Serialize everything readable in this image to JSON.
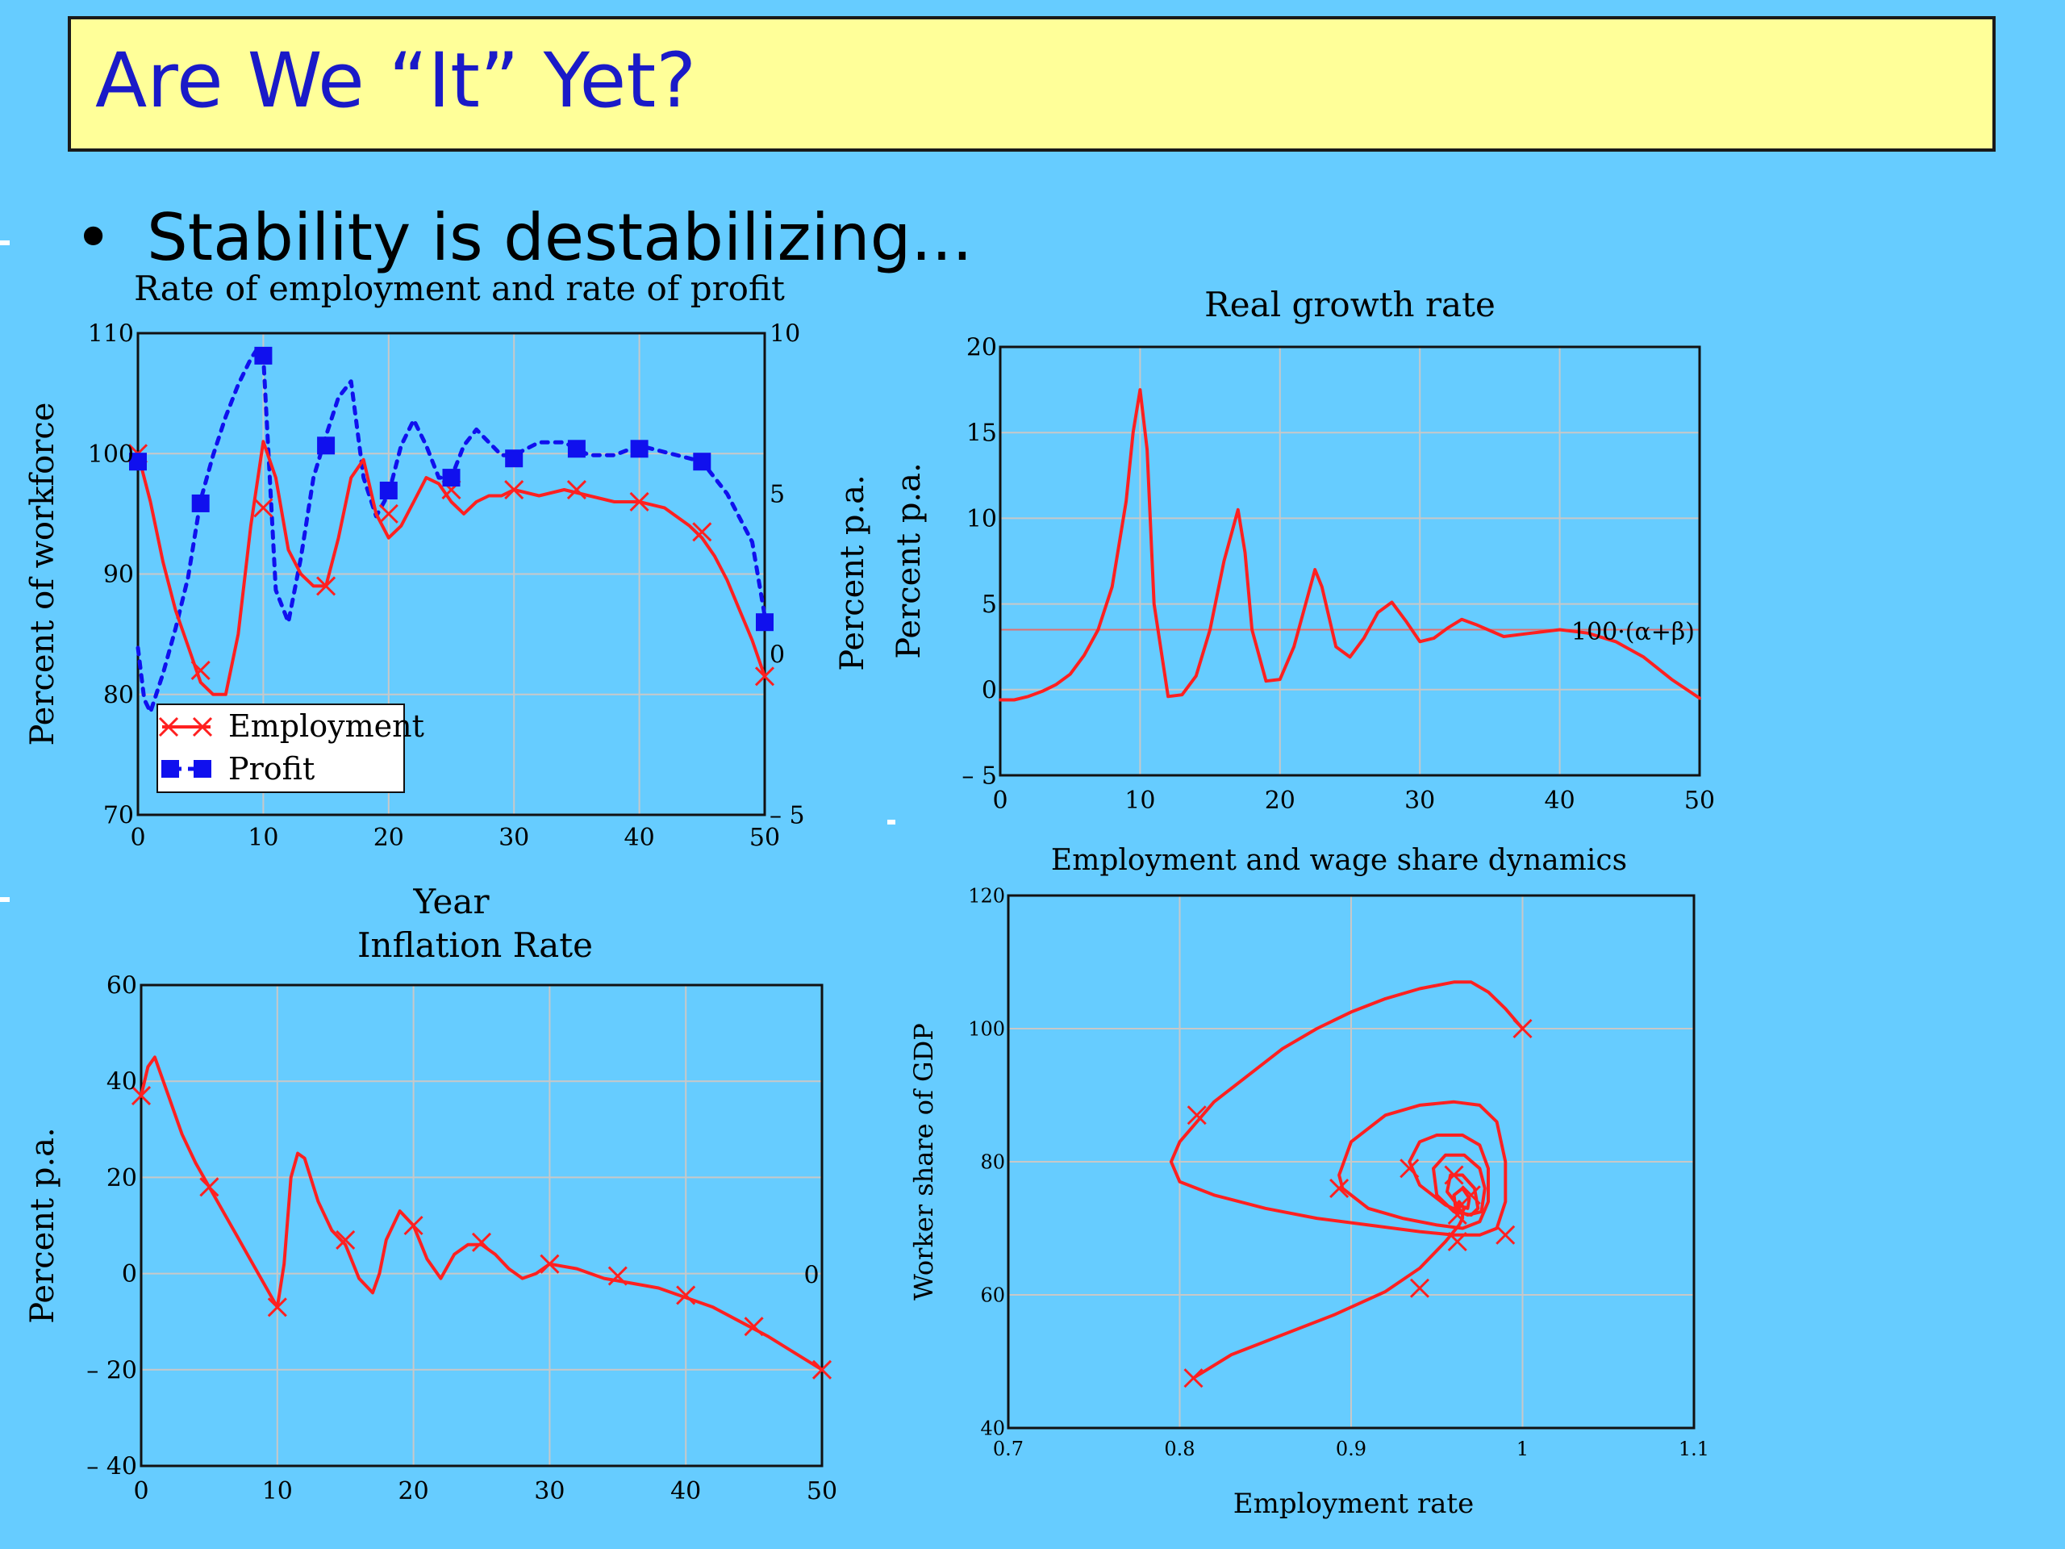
{
  "slide": {
    "title": "Are We “It” Yet?",
    "bullet": "Stability is destabilizing..."
  },
  "colors": {
    "background": "#66ccff",
    "title_fill": "#ffff99",
    "title_text": "#1a1ac8",
    "employment": "#ff2020",
    "profit": "#1010ee",
    "grid": "#c8c8c8"
  },
  "chart_data": [
    {
      "id": "employment_profit",
      "type": "line",
      "title": "Rate of employment and rate of profit",
      "xlabel": "Year",
      "ylabel": "Percent of workforce",
      "y2label": "Percent p.a.",
      "xlim": [
        0,
        50
      ],
      "ylim": [
        70,
        110
      ],
      "y2lim": [
        -5,
        10
      ],
      "xticks": [
        "0",
        "10",
        "20",
        "30",
        "40",
        "50"
      ],
      "yticks": [
        "70",
        "80",
        "90",
        "100",
        "110"
      ],
      "y2ticks": [
        "– 5",
        "0",
        "5",
        "10"
      ],
      "legend": {
        "position": "bottom-left",
        "entries": [
          "Employment",
          "Profit"
        ]
      },
      "series": [
        {
          "name": "Employment",
          "axis": "left",
          "style": "solid",
          "marker": "x",
          "x": [
            0,
            1,
            2,
            3,
            4,
            5,
            6,
            7,
            8,
            9,
            10,
            11,
            12,
            13,
            14,
            15,
            16,
            17,
            18,
            19,
            20,
            21,
            22,
            23,
            24,
            25,
            26,
            27,
            28,
            29,
            30,
            32,
            34,
            36,
            38,
            40,
            42,
            44,
            45,
            46,
            47,
            48,
            49,
            50
          ],
          "y": [
            100,
            96,
            91,
            87,
            84,
            81,
            80,
            80,
            85,
            94,
            101,
            98,
            92,
            90,
            89,
            89,
            93,
            98,
            99.5,
            95,
            93,
            94,
            96,
            98,
            97.5,
            96,
            95,
            96,
            96.5,
            96.5,
            97,
            96.5,
            97,
            96.5,
            96,
            96,
            95.5,
            94,
            93,
            91.5,
            89.5,
            87,
            84.5,
            81.5
          ],
          "marker_x": [
            0,
            5,
            10,
            15,
            20,
            25,
            30,
            35,
            40,
            45,
            50
          ],
          "marker_y": [
            100,
            82,
            95.5,
            89,
            95,
            97,
            97,
            97,
            96,
            93.5,
            81.5
          ]
        },
        {
          "name": "Profit",
          "axis": "right",
          "style": "dotted",
          "marker": "square",
          "x": [
            0,
            0.5,
            1,
            2,
            3,
            4,
            5,
            6,
            7,
            8,
            9,
            9.5,
            10,
            11,
            12,
            13,
            14,
            15,
            16,
            17,
            18,
            19,
            20,
            21,
            22,
            23,
            24,
            25,
            26,
            27,
            28,
            29,
            30,
            32,
            34,
            36,
            38,
            40,
            42,
            44,
            45,
            47,
            49,
            50
          ],
          "y": [
            0.2,
            -1.4,
            -1.8,
            -0.6,
            0.8,
            2.4,
            4.8,
            6.2,
            7.4,
            8.4,
            9.2,
            9.5,
            9.3,
            2.0,
            1.0,
            3.0,
            5.5,
            6.8,
            8.0,
            8.5,
            5.5,
            4.3,
            5.0,
            6.5,
            7.3,
            6.5,
            5.5,
            5.5,
            6.5,
            7.0,
            6.6,
            6.2,
            6.2,
            6.6,
            6.6,
            6.2,
            6.2,
            6.5,
            6.3,
            6.1,
            6.0,
            5.0,
            3.5,
            1.2
          ],
          "marker_x": [
            0,
            5,
            10,
            15,
            20,
            25,
            30,
            35,
            40,
            45,
            50
          ],
          "marker_y": [
            6.0,
            4.7,
            9.3,
            6.5,
            5.1,
            5.5,
            6.1,
            6.4,
            6.4,
            6.0,
            1.0
          ]
        }
      ]
    },
    {
      "id": "real_growth",
      "type": "line",
      "title": "Real growth rate",
      "ylabel": "Percent p.a.",
      "xlim": [
        0,
        50
      ],
      "ylim": [
        -5,
        20
      ],
      "xticks": [
        "0",
        "10",
        "20",
        "30",
        "40",
        "50"
      ],
      "yticks": [
        "– 5",
        "0",
        "5",
        "10",
        "15",
        "20"
      ],
      "reference_line": {
        "y": 3.5,
        "label": "100·(α+β)"
      },
      "series": [
        {
          "name": "",
          "style": "solid",
          "x": [
            0,
            1,
            2,
            3,
            4,
            5,
            6,
            7,
            8,
            9,
            9.5,
            10,
            10.5,
            11,
            12,
            13,
            14,
            15,
            16,
            17,
            17.5,
            18,
            19,
            20,
            21,
            22,
            22.5,
            23,
            24,
            25,
            26,
            27,
            28,
            29,
            30,
            31,
            32,
            33,
            34,
            36,
            38,
            40,
            42,
            44,
            46,
            48,
            50
          ],
          "y": [
            -0.6,
            -0.6,
            -0.4,
            -0.1,
            0.3,
            0.9,
            2.0,
            3.5,
            6.0,
            11,
            15,
            17.5,
            14,
            5,
            -0.4,
            -0.3,
            0.8,
            3.5,
            7.5,
            10.5,
            8,
            3.5,
            0.5,
            0.6,
            2.5,
            5.5,
            7,
            6,
            2.5,
            1.9,
            3,
            4.5,
            5.1,
            4,
            2.8,
            3.0,
            3.6,
            4.1,
            3.8,
            3.1,
            3.3,
            3.5,
            3.3,
            2.8,
            1.9,
            0.6,
            -0.5
          ]
        }
      ]
    },
    {
      "id": "inflation",
      "type": "line",
      "title": "Inflation Rate",
      "ylabel": "Percent p.a.",
      "xlim": [
        0,
        50
      ],
      "ylim": [
        -40,
        60
      ],
      "xticks": [
        "0",
        "10",
        "20",
        "30",
        "40",
        "50"
      ],
      "yticks": [
        "– 40",
        "– 20",
        "0",
        "20",
        "40",
        "60"
      ],
      "right_label": "0",
      "series": [
        {
          "name": "",
          "style": "solid",
          "marker": "x",
          "x": [
            0,
            0.5,
            1,
            2,
            3,
            4,
            5,
            6,
            7,
            8,
            9,
            10,
            10.5,
            11,
            11.5,
            12,
            13,
            14,
            15,
            16,
            17,
            17.5,
            18,
            19,
            20,
            21,
            22,
            23,
            24,
            25,
            26,
            27,
            28,
            29,
            30,
            32,
            34,
            36,
            38,
            40,
            42,
            44,
            46,
            48,
            50
          ],
          "y": [
            37,
            43,
            45,
            37,
            29,
            23,
            18,
            13,
            8,
            3,
            -2,
            -7,
            2,
            20,
            25,
            24,
            15,
            9,
            6,
            -1,
            -4,
            0,
            7,
            13,
            10,
            3,
            -1,
            4,
            6,
            6,
            4,
            1,
            -1,
            0,
            2,
            1,
            -1,
            -2,
            -3,
            -5,
            -7,
            -10,
            -13,
            -16.5,
            -20
          ],
          "marker_x": [
            0,
            5,
            10,
            15,
            20,
            25,
            30,
            35,
            40,
            45,
            50
          ],
          "marker_y": [
            37,
            18,
            -7,
            7,
            10,
            6.5,
            2,
            -0.5,
            -4.5,
            -11,
            -20
          ]
        }
      ]
    },
    {
      "id": "phase",
      "type": "line",
      "title": "Employment and wage share dynamics",
      "xlabel": "Employment rate",
      "ylabel": "Worker share of GDP",
      "xlim": [
        0.7,
        1.1
      ],
      "ylim": [
        40,
        120
      ],
      "xticks": [
        "0.7",
        "0.8",
        "0.9",
        "1",
        "1.1"
      ],
      "yticks": [
        "40",
        "60",
        "80",
        "100",
        "120"
      ],
      "series": [
        {
          "name": "",
          "style": "solid",
          "marker": "x",
          "x": [
            1.0,
            0.99,
            0.98,
            0.97,
            0.96,
            0.94,
            0.92,
            0.9,
            0.88,
            0.86,
            0.84,
            0.82,
            0.81,
            0.8,
            0.795,
            0.8,
            0.82,
            0.85,
            0.88,
            0.91,
            0.94,
            0.96,
            0.975,
            0.985,
            0.99,
            0.99,
            0.985,
            0.975,
            0.96,
            0.94,
            0.92,
            0.9,
            0.893,
            0.895,
            0.91,
            0.93,
            0.95,
            0.965,
            0.975,
            0.98,
            0.98,
            0.975,
            0.965,
            0.95,
            0.94,
            0.934,
            0.94,
            0.955,
            0.968,
            0.976,
            0.978,
            0.975,
            0.966,
            0.955,
            0.948,
            0.95,
            0.96,
            0.97,
            0.974,
            0.972,
            0.965,
            0.958,
            0.956,
            0.962,
            0.968,
            0.969,
            0.965,
            0.96,
            0.961,
            0.965,
            0.966,
            0.963,
            0.962,
            0.964,
            0.965,
            0.965,
            0.963,
            0.955,
            0.94,
            0.92,
            0.89,
            0.86,
            0.83,
            0.808
          ],
          "y": [
            100,
            103,
            105.5,
            107,
            107,
            106,
            104.5,
            102.5,
            100,
            97,
            93,
            89,
            86,
            83,
            80,
            77,
            75,
            73,
            71.5,
            70.5,
            69.5,
            69,
            69,
            70,
            74,
            80,
            86,
            88.5,
            89,
            88.5,
            87,
            83,
            78,
            76,
            73,
            71.5,
            70.5,
            70,
            71,
            74,
            79,
            82.5,
            84,
            84,
            83,
            80,
            76.5,
            73.5,
            72,
            72.5,
            76,
            79,
            81,
            81,
            79,
            75,
            72.5,
            72,
            73,
            76,
            78,
            78,
            75.5,
            73.5,
            73,
            74.5,
            76,
            75,
            73,
            72.5,
            73,
            74,
            73.5,
            72.5,
            72,
            71.5,
            70.5,
            68,
            64,
            60.5,
            57,
            54,
            51,
            47.5
          ],
          "marker_x": [
            1.0,
            0.81,
            0.893,
            0.934,
            0.96,
            0.97,
            0.99,
            0.962,
            0.962,
            0.94,
            0.808
          ],
          "marker_y": [
            100,
            87,
            76,
            79,
            78,
            75,
            69,
            72,
            68,
            61,
            47.5
          ]
        }
      ]
    }
  ]
}
